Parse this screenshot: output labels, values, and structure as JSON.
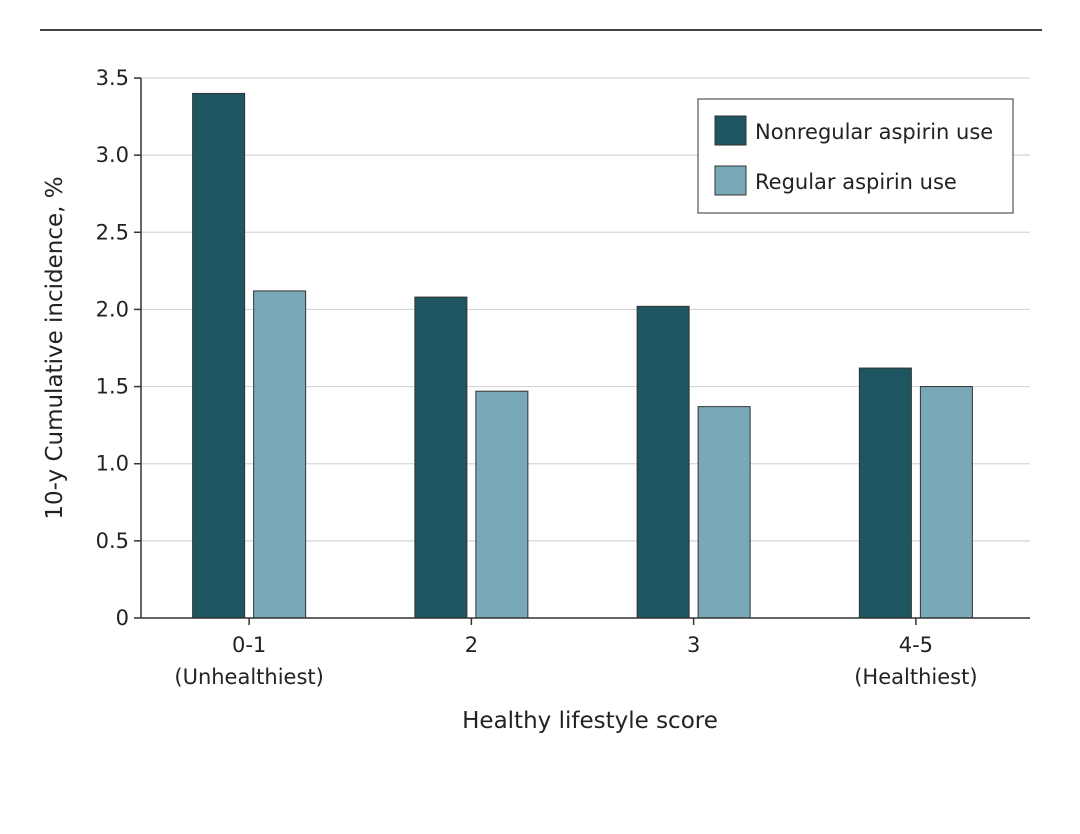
{
  "chart_data": {
    "type": "bar",
    "xlabel": "Healthy lifestyle score",
    "ylabel": "10-y Cumulative incidence, %",
    "ylim": [
      0,
      3.5
    ],
    "yticks": [
      {
        "value": 0,
        "label": "0"
      },
      {
        "value": 0.5,
        "label": "0.5"
      },
      {
        "value": 1.0,
        "label": "1.0"
      },
      {
        "value": 1.5,
        "label": "1.5"
      },
      {
        "value": 2.0,
        "label": "2.0"
      },
      {
        "value": 2.5,
        "label": "2.5"
      },
      {
        "value": 3.0,
        "label": "3.0"
      },
      {
        "value": 3.5,
        "label": "3.5"
      }
    ],
    "grid": true,
    "legend_position": "top-right",
    "categories": [
      {
        "line1": "0-1",
        "line2": "(Unhealthiest)"
      },
      {
        "line1": "2",
        "line2": ""
      },
      {
        "line1": "3",
        "line2": ""
      },
      {
        "line1": "4-5",
        "line2": "(Healthiest)"
      }
    ],
    "series": [
      {
        "name": "Nonregular aspirin use",
        "color": "#1d5560",
        "values": [
          3.4,
          2.08,
          2.02,
          1.62
        ]
      },
      {
        "name": "Regular aspirin use",
        "color": "#79a9b8",
        "values": [
          2.12,
          1.47,
          1.37,
          1.5
        ]
      }
    ]
  }
}
